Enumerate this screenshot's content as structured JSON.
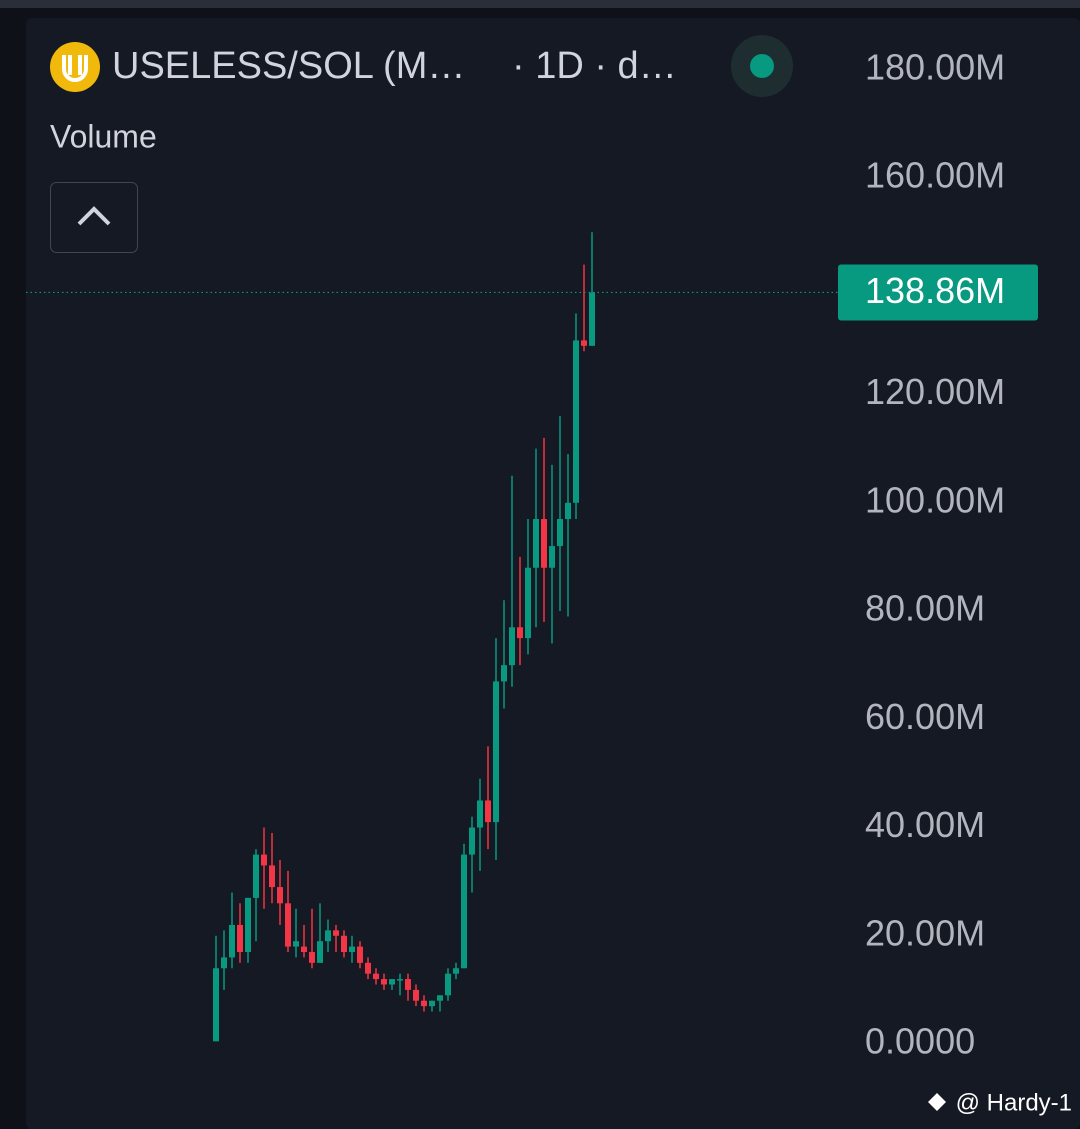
{
  "chart_data": {
    "type": "candlestick",
    "title": "USELESS/SOL (M…",
    "subtitle": "· 1D · d…",
    "indicator": "Volume",
    "watermark": "@ Hardy-1",
    "up_color": "#089981",
    "down_color": "#f23645",
    "last_value_label": "138.86M",
    "ylim": [
      -15700000,
      189200000
    ],
    "yticks": [
      {
        "value": 0,
        "label": "0.0000"
      },
      {
        "value": 20000000,
        "label": "20.00M"
      },
      {
        "value": 40000000,
        "label": "40.00M"
      },
      {
        "value": 60000000,
        "label": "60.00M"
      },
      {
        "value": 80000000,
        "label": "80.00M"
      },
      {
        "value": 100000000,
        "label": "100.00M"
      },
      {
        "value": 120000000,
        "label": "120.00M"
      },
      {
        "value": 160000000,
        "label": "160.00M"
      },
      {
        "value": 180000000,
        "label": "180.00M"
      }
    ],
    "opens": [
      500000,
      14000000,
      16000000,
      22000000,
      17000000,
      27000000,
      35000000,
      33000000,
      29000000,
      26000000,
      18000000,
      18000000,
      17000000,
      15000000,
      19000000,
      21000000,
      20000000,
      17000000,
      18000000,
      15000000,
      13000000,
      12000000,
      11000000,
      12000000,
      12000000,
      10000000,
      8000000,
      7000000,
      8000000,
      9000000,
      13000000,
      14000000,
      35000000,
      40000000,
      45000000,
      41000000,
      67000000,
      70000000,
      77000000,
      75000000,
      88000000,
      97000000,
      88000000,
      92000000,
      97000000,
      100000000,
      130000000,
      129000000
    ],
    "highs": [
      20000000,
      21000000,
      28000000,
      26000000,
      27000000,
      36000000,
      40000000,
      39000000,
      34000000,
      32000000,
      25000000,
      22000000,
      25000000,
      26000000,
      23000000,
      22000000,
      21000000,
      20000000,
      19000000,
      16000000,
      14000000,
      13000000,
      12000000,
      13000000,
      13000000,
      11000000,
      9000000,
      8000000,
      9000000,
      14000000,
      15000000,
      37000000,
      42000000,
      49000000,
      55000000,
      75000000,
      82000000,
      105000000,
      90000000,
      97000000,
      110000000,
      112000000,
      107000000,
      116000000,
      109000000,
      135000000,
      144000000,
      150000000
    ],
    "lows": [
      500000,
      10000000,
      14000000,
      15000000,
      15000000,
      19000000,
      25000000,
      26000000,
      22000000,
      17000000,
      16000000,
      16000000,
      14000000,
      15000000,
      17000000,
      17000000,
      16000000,
      15000000,
      14000000,
      12000000,
      11000000,
      10000000,
      10000000,
      9000000,
      8000000,
      7000000,
      6000000,
      6000000,
      6000000,
      8000000,
      12000000,
      14000000,
      28000000,
      32000000,
      36000000,
      34000000,
      62000000,
      66000000,
      70000000,
      72000000,
      77000000,
      78000000,
      74000000,
      80000000,
      79000000,
      97000000,
      128000000,
      129000000
    ],
    "closes": [
      14000000,
      16000000,
      22000000,
      17000000,
      27000000,
      35000000,
      33000000,
      29000000,
      26000000,
      18000000,
      19000000,
      17000000,
      15000000,
      19000000,
      21000000,
      20000000,
      17000000,
      18000000,
      15000000,
      13000000,
      12000000,
      11000000,
      12000000,
      12000000,
      10000000,
      8000000,
      7000000,
      8000000,
      9000000,
      13000000,
      14000000,
      35000000,
      40000000,
      45000000,
      41000000,
      67000000,
      70000000,
      77000000,
      75000000,
      88000000,
      97000000,
      88000000,
      92000000,
      97000000,
      100000000,
      130000000,
      129000000,
      138860000
    ]
  }
}
